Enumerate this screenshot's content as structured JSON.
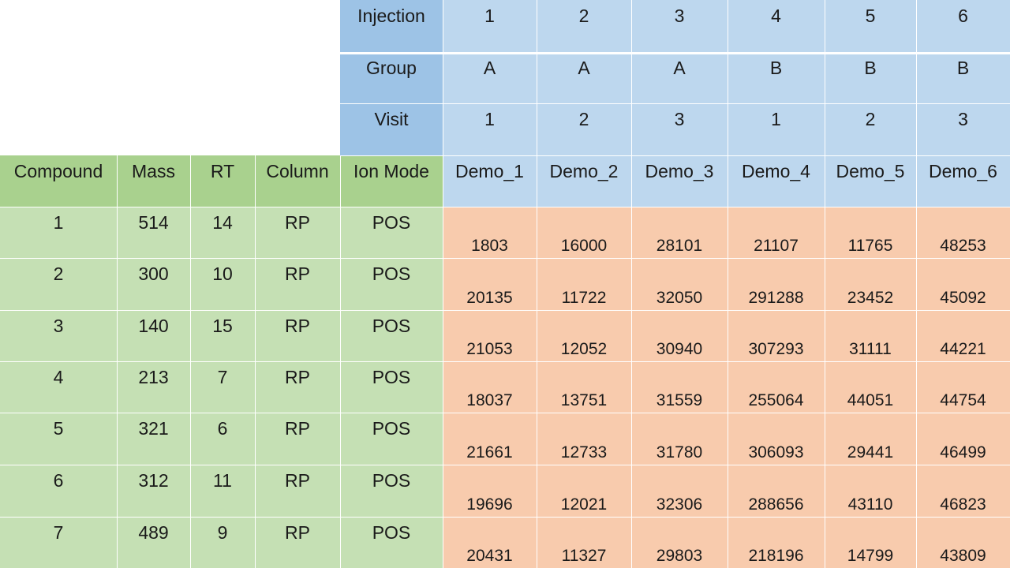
{
  "meta_rows": [
    {
      "label": "Injection",
      "values": [
        "1",
        "2",
        "3",
        "4",
        "5",
        "6"
      ]
    },
    {
      "label": "Group",
      "values": [
        "A",
        "A",
        "A",
        "B",
        "B",
        "B"
      ]
    },
    {
      "label": "Visit",
      "values": [
        "1",
        "2",
        "3",
        "1",
        "2",
        "3"
      ]
    }
  ],
  "headers": [
    "Compound",
    "Mass",
    "RT",
    "Column",
    "Ion Mode",
    "Demo_1",
    "Demo_2",
    "Demo_3",
    "Demo_4",
    "Demo_5",
    "Demo_6"
  ],
  "rows": [
    {
      "info": [
        "1",
        "514",
        "14",
        "RP",
        "POS"
      ],
      "values": [
        "1803",
        "16000",
        "28101",
        "21107",
        "11765",
        "48253"
      ]
    },
    {
      "info": [
        "2",
        "300",
        "10",
        "RP",
        "POS"
      ],
      "values": [
        "20135",
        "11722",
        "32050",
        "291288",
        "23452",
        "45092"
      ]
    },
    {
      "info": [
        "3",
        "140",
        "15",
        "RP",
        "POS"
      ],
      "values": [
        "21053",
        "12052",
        "30940",
        "307293",
        "31111",
        "44221"
      ]
    },
    {
      "info": [
        "4",
        "213",
        "7",
        "RP",
        "POS"
      ],
      "values": [
        "18037",
        "13751",
        "31559",
        "255064",
        "44051",
        "44754"
      ]
    },
    {
      "info": [
        "5",
        "321",
        "6",
        "RP",
        "POS"
      ],
      "values": [
        "21661",
        "12733",
        "31780",
        "306093",
        "29441",
        "46499"
      ]
    },
    {
      "info": [
        "6",
        "312",
        "11",
        "RP",
        "POS"
      ],
      "values": [
        "19696",
        "12021",
        "32306",
        "288656",
        "43110",
        "46823"
      ]
    },
    {
      "info": [
        "7",
        "489",
        "9",
        "RP",
        "POS"
      ],
      "values": [
        "20431",
        "11327",
        "29803",
        "218196",
        "14799",
        "43809"
      ]
    }
  ],
  "colors": {
    "header_dark": "#9dc3e6",
    "header_light": "#bdd7ee",
    "green_dark": "#a9d18e",
    "green_light": "#c5e0b4",
    "orange": "#f8cbad"
  }
}
